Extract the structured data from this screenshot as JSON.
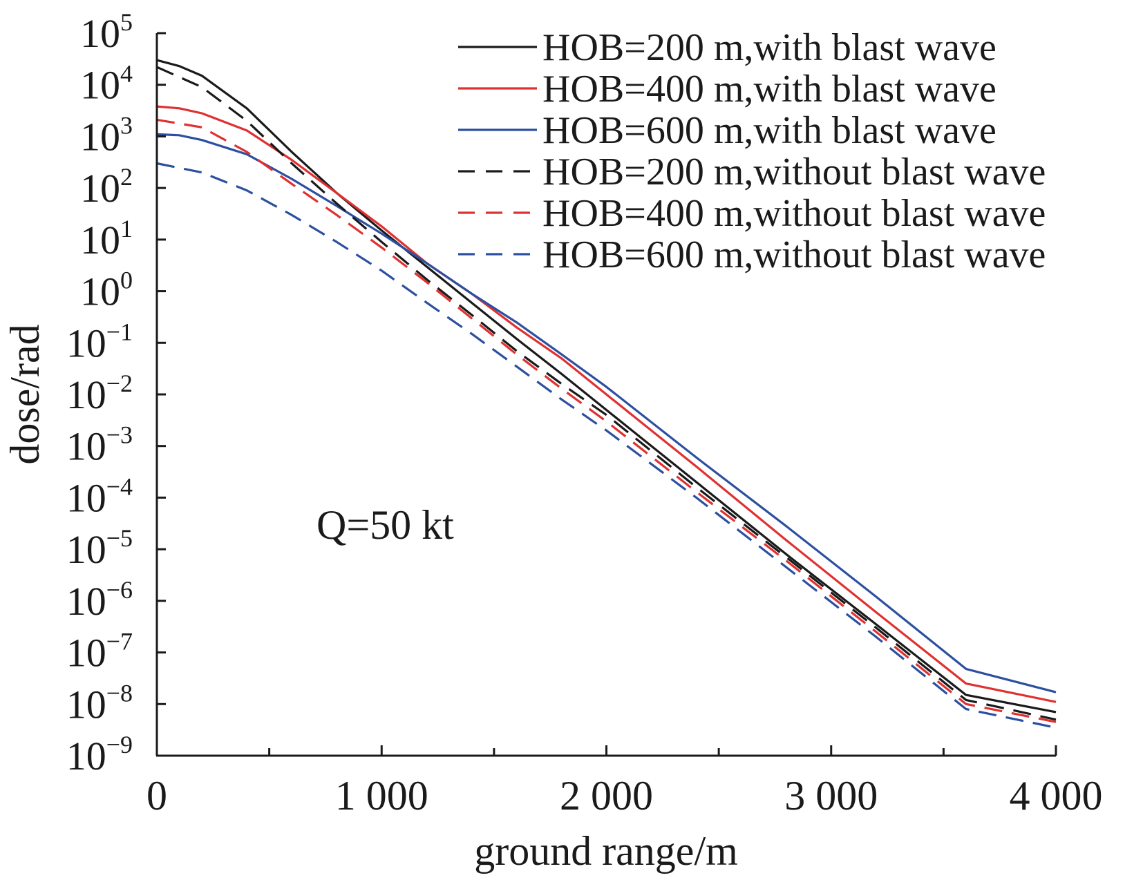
{
  "chart_data": {
    "type": "line",
    "title": "",
    "xlabel": "ground range/m",
    "ylabel": "dose/rad",
    "xlim": [
      0,
      4000
    ],
    "ylim": [
      1e-09,
      100000
    ],
    "y_scale": "log",
    "grid": false,
    "legend_position": "top-right",
    "annotation": "Q=50 kt",
    "x_ticks": [
      {
        "value": 0,
        "label": "0"
      },
      {
        "value": 1000,
        "label": "1 000"
      },
      {
        "value": 2000,
        "label": "2 000"
      },
      {
        "value": 3000,
        "label": "3 000"
      },
      {
        "value": 4000,
        "label": "4 000"
      }
    ],
    "x_minor_ticks": [
      500,
      1500,
      2500,
      3500
    ],
    "y_ticks": [
      {
        "value": 100000.0,
        "base": "10",
        "exp": "5"
      },
      {
        "value": 10000.0,
        "base": "10",
        "exp": "4"
      },
      {
        "value": 1000.0,
        "base": "10",
        "exp": "3"
      },
      {
        "value": 100.0,
        "base": "10",
        "exp": "2"
      },
      {
        "value": 10.0,
        "base": "10",
        "exp": "1"
      },
      {
        "value": 1.0,
        "base": "10",
        "exp": "0"
      },
      {
        "value": 0.1,
        "base": "10",
        "exp": "−1"
      },
      {
        "value": 0.01,
        "base": "10",
        "exp": "−2"
      },
      {
        "value": 0.001,
        "base": "10",
        "exp": "−3"
      },
      {
        "value": 0.0001,
        "base": "10",
        "exp": "−4"
      },
      {
        "value": 1e-05,
        "base": "10",
        "exp": "−5"
      },
      {
        "value": 1e-06,
        "base": "10",
        "exp": "−6"
      },
      {
        "value": 1e-07,
        "base": "10",
        "exp": "−7"
      },
      {
        "value": 1e-08,
        "base": "10",
        "exp": "−8"
      },
      {
        "value": 1e-09,
        "base": "10",
        "exp": "−9"
      }
    ],
    "series": [
      {
        "name": "HOB=200 m,with blast wave",
        "color": "#1a1a1a",
        "style": "solid",
        "x": [
          0,
          100,
          200,
          400,
          600,
          800,
          1000,
          1200,
          1400,
          1600,
          1800,
          2000,
          2400,
          2800,
          3200,
          3600,
          4000
        ],
        "y": [
          30000,
          23000,
          15000,
          3500,
          500,
          80,
          15,
          3,
          0.6,
          0.12,
          0.025,
          0.005,
          0.0002,
          8e-06,
          3.5e-07,
          1.5e-08,
          7e-09
        ]
      },
      {
        "name": "HOB=400 m,with blast wave",
        "color": "#e03030",
        "style": "solid",
        "x": [
          0,
          100,
          200,
          400,
          600,
          800,
          1000,
          1200,
          1400,
          1600,
          1800,
          2000,
          2400,
          2800,
          3200,
          3600,
          4000
        ],
        "y": [
          3800,
          3500,
          2800,
          1300,
          350,
          80,
          18,
          3.5,
          0.9,
          0.2,
          0.05,
          0.01,
          0.0004,
          1.5e-05,
          6e-07,
          2.5e-08,
          1.1e-08
        ]
      },
      {
        "name": "HOB=600 m,with blast wave",
        "color": "#2c4fa0",
        "style": "solid",
        "x": [
          0,
          100,
          200,
          400,
          600,
          800,
          1000,
          1200,
          1400,
          1600,
          1800,
          2000,
          2400,
          2800,
          3200,
          3600,
          4000
        ],
        "y": [
          1100,
          1050,
          850,
          450,
          150,
          45,
          13,
          3.5,
          0.9,
          0.25,
          0.06,
          0.014,
          0.0006,
          2.8e-05,
          1.2e-06,
          4.8e-08,
          1.7e-08
        ]
      },
      {
        "name": "HOB=200 m,without blast wave",
        "color": "#1a1a1a",
        "style": "dashed",
        "x": [
          0,
          200,
          400,
          600,
          800,
          1000,
          1200,
          1400,
          1600,
          1800,
          2000,
          2400,
          2800,
          3200,
          3600,
          4000
        ],
        "y": [
          22000,
          9000,
          2000,
          300,
          50,
          9,
          1.7,
          0.35,
          0.07,
          0.016,
          0.004,
          0.00016,
          7e-06,
          3e-07,
          1.2e-08,
          5e-09
        ]
      },
      {
        "name": "HOB=400 m,without blast wave",
        "color": "#e03030",
        "style": "dashed",
        "x": [
          0,
          200,
          400,
          600,
          800,
          1000,
          1200,
          1400,
          1600,
          1800,
          2000,
          2400,
          2800,
          3200,
          3600,
          4000
        ],
        "y": [
          2100,
          1500,
          500,
          120,
          30,
          7,
          1.5,
          0.3,
          0.06,
          0.013,
          0.003,
          0.00013,
          6e-06,
          2.5e-07,
          1e-08,
          4.5e-09
        ]
      },
      {
        "name": "HOB=600 m,without blast wave",
        "color": "#2c4fa0",
        "style": "dashed",
        "x": [
          0,
          200,
          400,
          600,
          800,
          1000,
          1200,
          1400,
          1600,
          1800,
          2000,
          2400,
          2800,
          3200,
          3600,
          4000
        ],
        "y": [
          300,
          200,
          90,
          30,
          9,
          2.5,
          0.6,
          0.15,
          0.035,
          0.008,
          0.002,
          0.0001,
          4.5e-06,
          2e-07,
          8e-09,
          3.5e-09
        ]
      }
    ]
  }
}
